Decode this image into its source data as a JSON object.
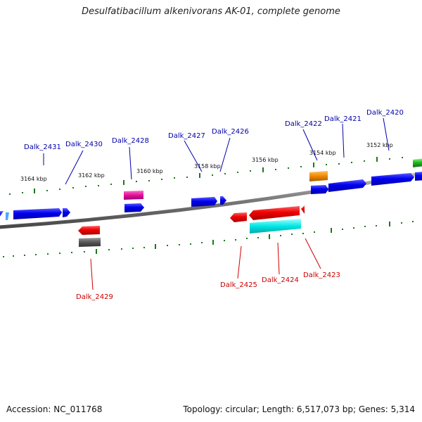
{
  "title": "Desulfatibacillum alkenivorans AK-01, complete genome",
  "footer": {
    "accession": "Accession: NC_011768",
    "summary": "Topology: circular; Length: 6,517,073 bp; Genes: 5,314"
  },
  "scale_ticks": [
    {
      "label": "3164 kbp"
    },
    {
      "label": "3162 kbp"
    },
    {
      "label": "3160 kbp"
    },
    {
      "label": "3158 kbp"
    },
    {
      "label": "3156 kbp"
    },
    {
      "label": "3154 kbp"
    },
    {
      "label": "3152 kbp"
    }
  ],
  "genes_top": [
    {
      "name": "Dalk_2431"
    },
    {
      "name": "Dalk_2430"
    },
    {
      "name": "Dalk_2428"
    },
    {
      "name": "Dalk_2427"
    },
    {
      "name": "Dalk_2426"
    },
    {
      "name": "Dalk_2422"
    },
    {
      "name": "Dalk_2421"
    },
    {
      "name": "Dalk_2420"
    }
  ],
  "genes_bottom": [
    {
      "name": "Dalk_2429"
    },
    {
      "name": "Dalk_2425"
    },
    {
      "name": "Dalk_2424"
    },
    {
      "name": "Dalk_2423"
    }
  ],
  "colors": {
    "forward_label": "#0000aa",
    "reverse_label": "#cc0000",
    "dots": "#1a7a1a",
    "backbone": "#7a7a7a",
    "blue": "#0000ee",
    "red": "#ee0000",
    "magenta": "#e0109a",
    "orange": "#ee8800",
    "cyan": "#00e6e6",
    "gray": "#555555",
    "green": "#20b020"
  }
}
